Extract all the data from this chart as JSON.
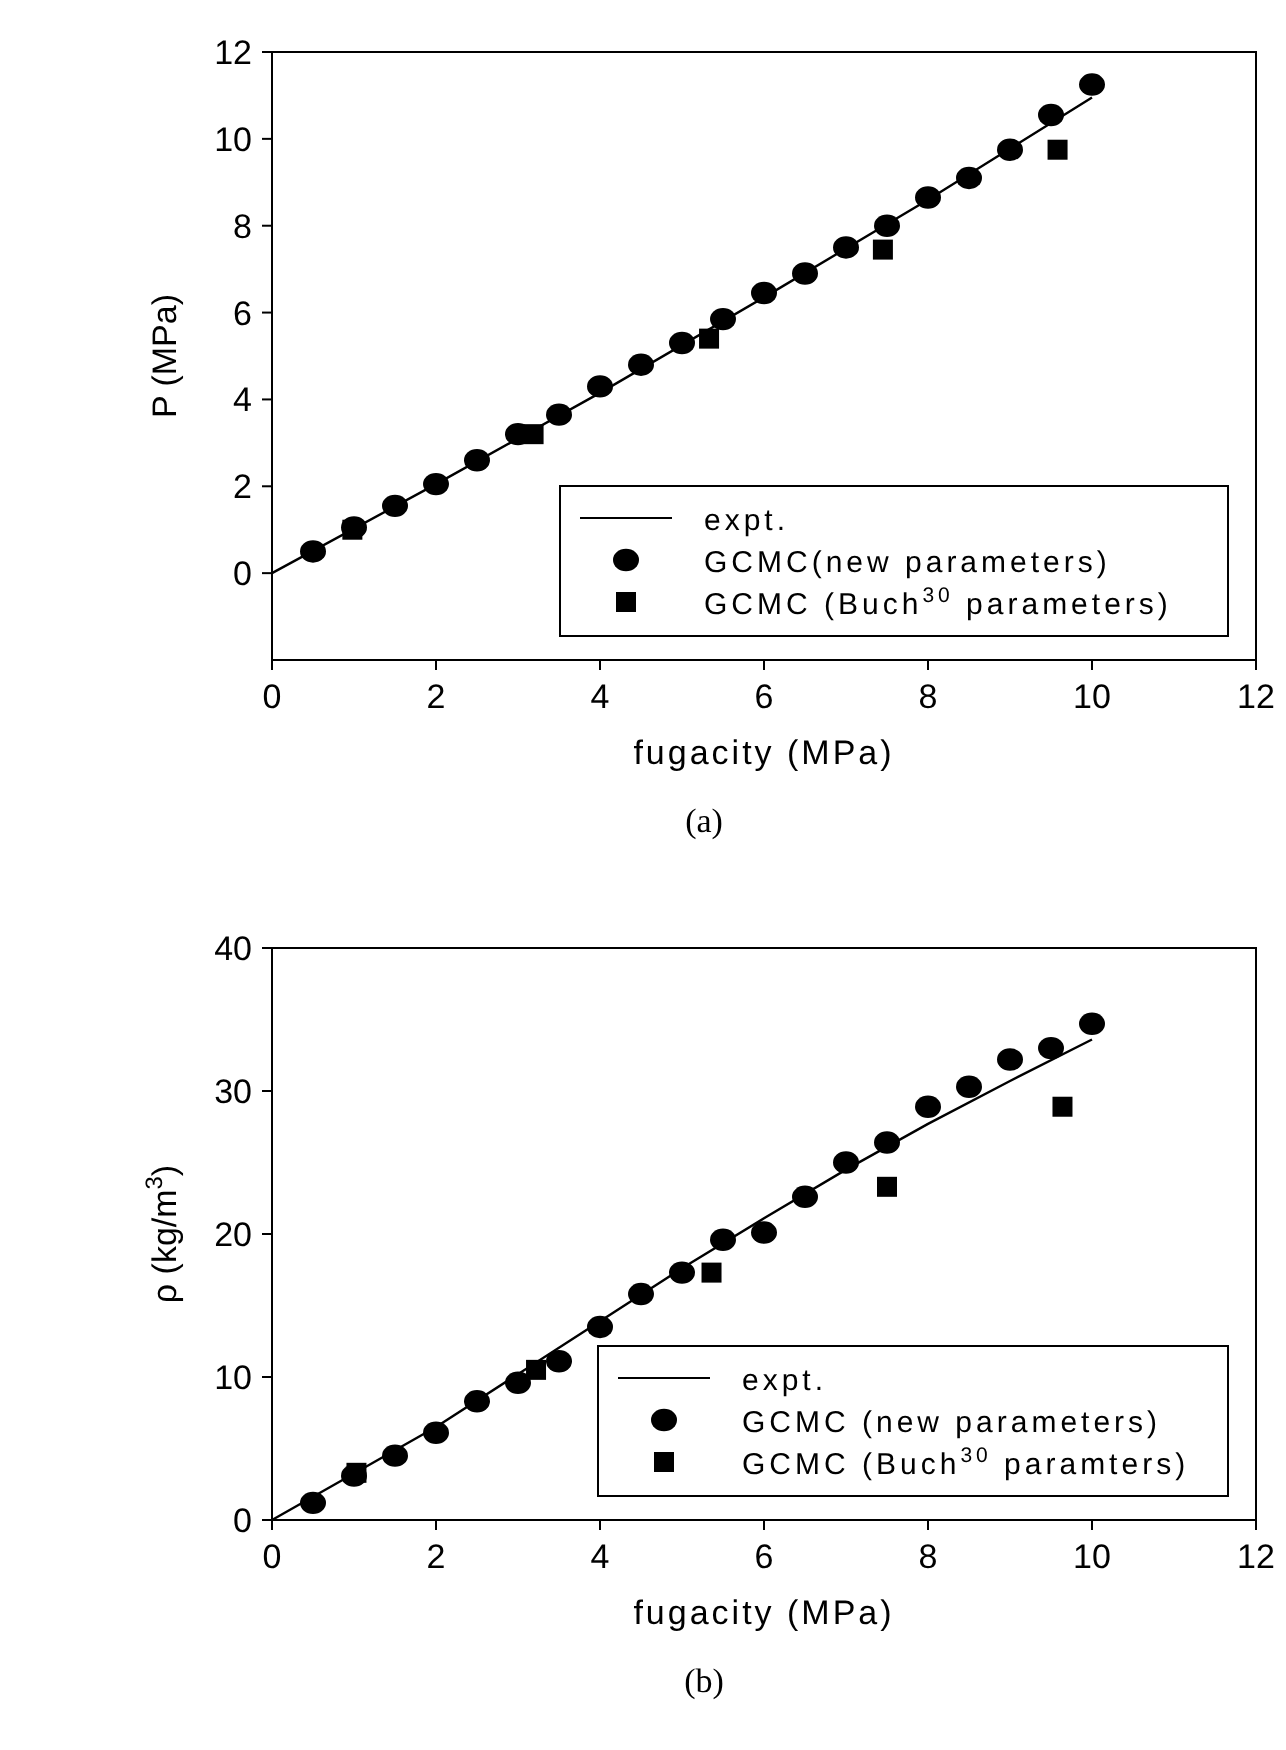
{
  "chart_data": [
    {
      "type": "scatter",
      "xlabel": "fugacity (MPa)",
      "ylabel": "P (MPa)",
      "xlim": [
        0,
        12
      ],
      "ylim": [
        -2,
        12
      ],
      "xticks": [
        0,
        2,
        4,
        6,
        8,
        10,
        12
      ],
      "yticks": [
        0,
        2,
        4,
        6,
        8,
        10,
        12
      ],
      "legend": "bottom right",
      "annotations": [
        "(a)"
      ],
      "series": [
        {
          "name": "expt.",
          "type": "line",
          "color": "#000000",
          "marker": "none",
          "line_style": "solid",
          "x": [
            0,
            2,
            4,
            6,
            8,
            10
          ],
          "values": [
            0,
            2.05,
            4.15,
            6.35,
            8.6,
            10.95
          ]
        },
        {
          "name": "GCMC(new parameters)",
          "color": "#000000",
          "marker": "circle",
          "x": [
            0.5,
            1,
            1.5,
            2,
            2.5,
            3,
            3.5,
            4,
            4.5,
            5,
            5.5,
            6,
            6.5,
            7,
            7.5,
            8,
            8.5,
            9,
            9.5,
            10
          ],
          "values": [
            0.5,
            1.05,
            1.55,
            2.05,
            2.6,
            3.2,
            3.65,
            4.3,
            4.8,
            5.3,
            5.85,
            6.45,
            6.9,
            7.5,
            8.0,
            8.65,
            9.1,
            9.75,
            10.55,
            11.25
          ]
        },
        {
          "name": "GCMC (Buch$^{30}$ parameters)",
          "color": "#000000",
          "marker": "square",
          "x": [
            0.98,
            3.19,
            5.33,
            7.45,
            9.58
          ],
          "values": [
            1.0,
            3.2,
            5.4,
            7.45,
            9.75
          ]
        }
      ]
    },
    {
      "type": "scatter",
      "xlabel": "fugacity (MPa)",
      "ylabel": "ρ (kg/m$^{3}$)",
      "xlim": [
        0,
        12
      ],
      "ylim": [
        0,
        40
      ],
      "xticks": [
        0,
        2,
        4,
        6,
        8,
        10,
        12
      ],
      "yticks": [
        0,
        10,
        20,
        30,
        40
      ],
      "legend": "bottom right",
      "annotations": [
        "(b)"
      ],
      "series": [
        {
          "name": "expt.",
          "type": "line",
          "color": "#000000",
          "marker": "none",
          "line_style": "solid",
          "x": [
            0,
            2,
            4,
            5,
            6,
            7,
            8,
            9,
            10
          ],
          "values": [
            0,
            6.5,
            13.9,
            17.6,
            21.1,
            24.5,
            27.7,
            30.7,
            33.6
          ]
        },
        {
          "name": "GCMC (new parameters)",
          "color": "#000000",
          "marker": "circle",
          "x": [
            0.5,
            1,
            1.5,
            2,
            2.5,
            3,
            3.5,
            4,
            4.5,
            5,
            5.5,
            6,
            6.5,
            7,
            7.5,
            8,
            8.5,
            9,
            9.5,
            10
          ],
          "values": [
            1.2,
            3.1,
            4.5,
            6.1,
            8.3,
            9.6,
            11.1,
            13.5,
            15.8,
            17.3,
            19.6,
            20.1,
            22.6,
            25.0,
            26.4,
            28.9,
            30.3,
            32.2,
            33.0,
            34.7
          ]
        },
        {
          "name": "GCMC (Buch$^{30}$ paramters)",
          "color": "#000000",
          "marker": "square",
          "x": [
            1.03,
            3.22,
            5.36,
            7.5,
            9.64
          ],
          "values": [
            3.3,
            10.5,
            17.3,
            23.3,
            28.9
          ]
        }
      ]
    }
  ]
}
